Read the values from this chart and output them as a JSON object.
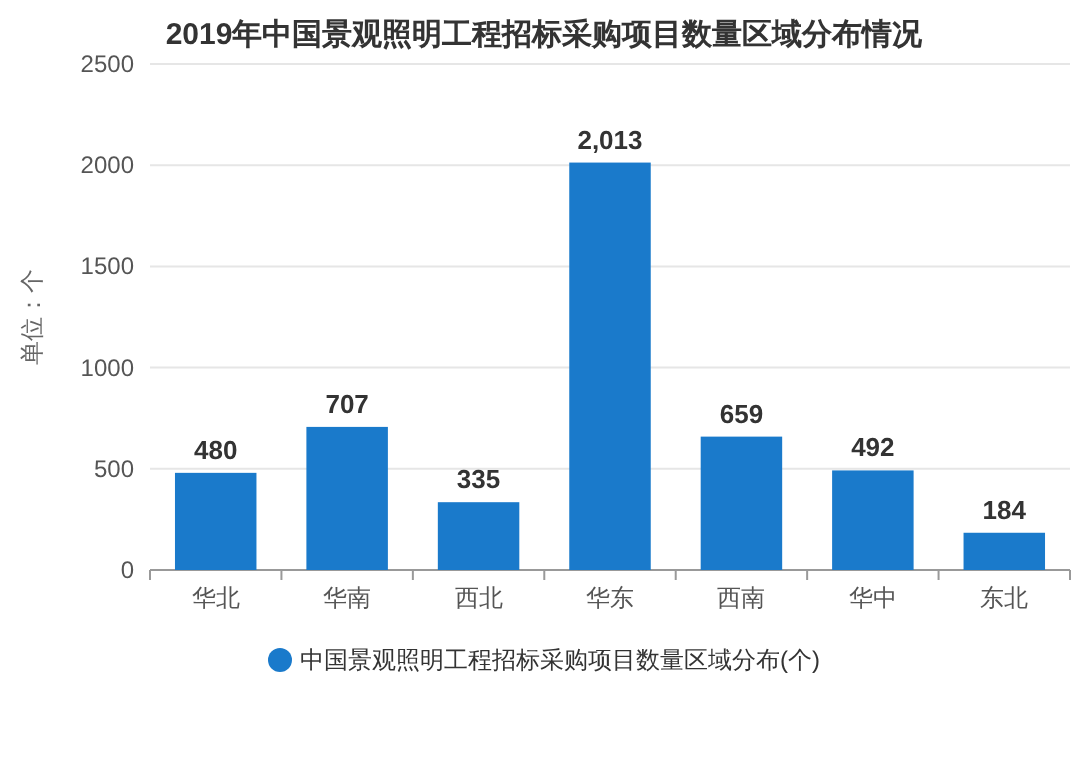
{
  "chart_data": {
    "type": "bar",
    "title": "2019年中国景观照明工程招标采购项目数量区域分布情况",
    "ylabel": "单位：个",
    "categories": [
      "华北",
      "华南",
      "西北",
      "华东",
      "西南",
      "华中",
      "东北"
    ],
    "series": [
      {
        "name": "中国景观照明工程招标采购项目数量区域分布(个)",
        "color": "#1a7acb",
        "values": [
          480,
          707,
          335,
          2013,
          659,
          492,
          184
        ],
        "value_labels": [
          "480",
          "707",
          "335",
          "2,013",
          "659",
          "492",
          "184"
        ]
      }
    ],
    "ylim": [
      0,
      2500
    ],
    "yticks": [
      0,
      500,
      1000,
      1500,
      2000,
      2500
    ],
    "grid": "y",
    "legend": "bottom"
  }
}
